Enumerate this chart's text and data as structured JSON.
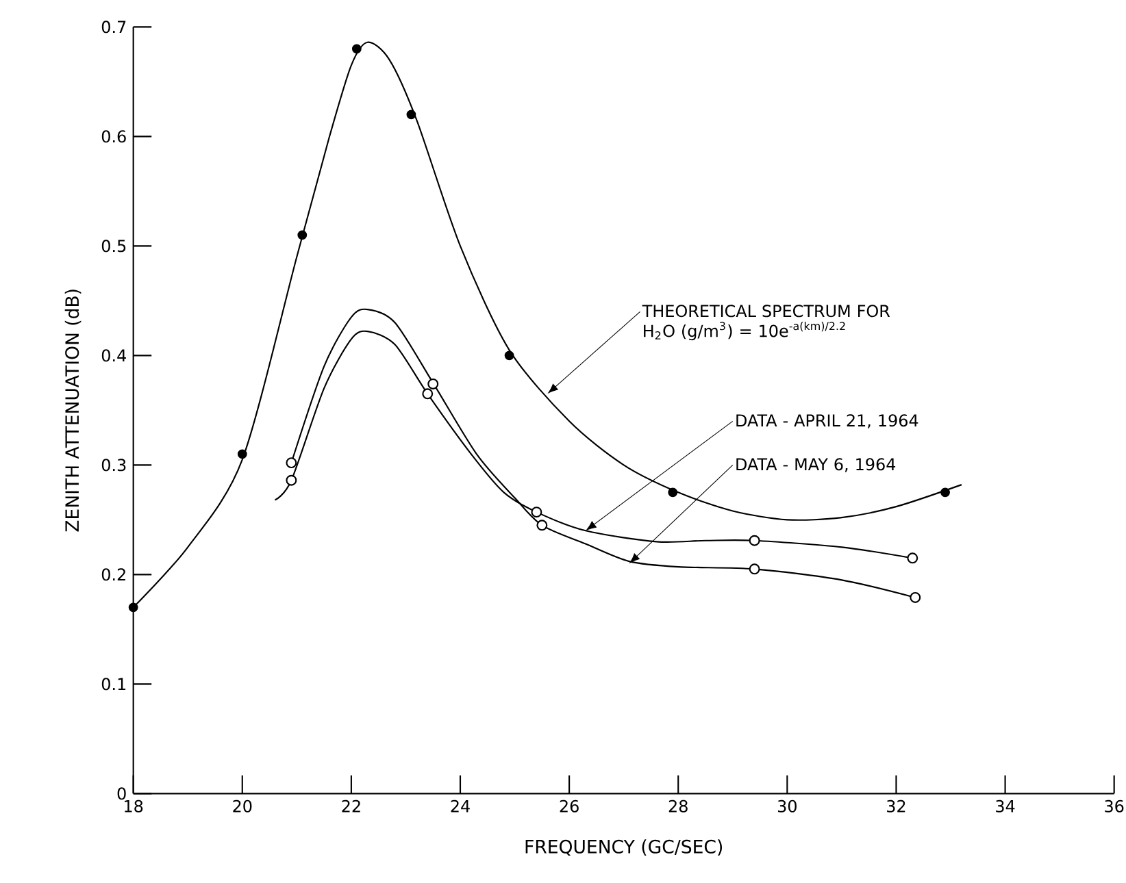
{
  "chart_data": {
    "type": "line",
    "xlabel": "FREQUENCY (GC/SEC)",
    "ylabel": "ZENITH ATTENUATION (dB)",
    "xlim": [
      18,
      36
    ],
    "ylim": [
      0,
      0.7
    ],
    "xticks": [
      18,
      20,
      22,
      24,
      26,
      28,
      30,
      32,
      34,
      36
    ],
    "yticks": [
      0,
      0.1,
      0.2,
      0.3,
      0.4,
      0.5,
      0.6,
      0.7
    ],
    "grid": false,
    "series": [
      {
        "type": "line",
        "color": "#000000",
        "marker": "none",
        "x": [
          18,
          19,
          20,
          21,
          21.6,
          22.0,
          22.3,
          22.7,
          23.2,
          24,
          24.9,
          26,
          27,
          28,
          29,
          30,
          31,
          32,
          33.2
        ],
        "values": [
          0.17,
          0.225,
          0.305,
          0.49,
          0.6,
          0.665,
          0.686,
          0.67,
          0.615,
          0.5,
          0.405,
          0.34,
          0.3,
          0.275,
          0.258,
          0.25,
          0.252,
          0.262,
          0.282
        ]
      },
      {
        "type": "scatter",
        "color": "#000000",
        "marker": "circle",
        "x": [
          18,
          20,
          21.1,
          22.1,
          23.1,
          24.9,
          27.9,
          32.9
        ],
        "values": [
          0.17,
          0.31,
          0.51,
          0.68,
          0.62,
          0.4,
          0.275,
          0.275
        ]
      },
      {
        "type": "line",
        "color": "#000000",
        "marker": "none",
        "x": [
          20.6,
          20.9,
          21.5,
          22.0,
          22.3,
          22.8,
          23.4,
          24.2,
          24.8,
          25.4,
          26.3,
          27.6,
          28.5,
          29.4,
          31,
          32.3
        ],
        "values": [
          0.268,
          0.286,
          0.37,
          0.415,
          0.422,
          0.41,
          0.365,
          0.31,
          0.275,
          0.257,
          0.24,
          0.23,
          0.231,
          0.231,
          0.225,
          0.215
        ]
      },
      {
        "type": "scatter",
        "color": "#ffffff",
        "marker": "circle",
        "x": [
          20.9,
          23.4,
          25.4,
          29.4,
          32.3
        ],
        "values": [
          0.286,
          0.365,
          0.257,
          0.231,
          0.215
        ]
      },
      {
        "type": "line",
        "color": "#000000",
        "marker": "none",
        "x": [
          20.9,
          21.5,
          22.0,
          22.3,
          22.8,
          23.5,
          24.3,
          25.0,
          25.5,
          26.3,
          27.1,
          28,
          29.4,
          31,
          32.35
        ],
        "values": [
          0.302,
          0.39,
          0.435,
          0.442,
          0.43,
          0.375,
          0.31,
          0.27,
          0.245,
          0.228,
          0.212,
          0.207,
          0.205,
          0.195,
          0.179
        ]
      },
      {
        "type": "scatter",
        "color": "#ffffff",
        "marker": "circle",
        "x": [
          20.9,
          23.5,
          25.5,
          29.4,
          32.35
        ],
        "values": [
          0.302,
          0.374,
          0.245,
          0.205,
          0.179
        ]
      }
    ],
    "annotations": [
      {
        "text": "THEORETICAL SPECTRUM FOR H$_{2}$O (g/m$^{3}$) = 10e$^{-a(km)/2.2}$",
        "x": 25.6,
        "y": 0.365
      },
      {
        "text": "DATA - APRIL 21, 1964",
        "x": 26.3,
        "y": 0.24
      },
      {
        "text": "DATA - MAY 6, 1964",
        "x": 27.1,
        "y": 0.21
      }
    ]
  }
}
